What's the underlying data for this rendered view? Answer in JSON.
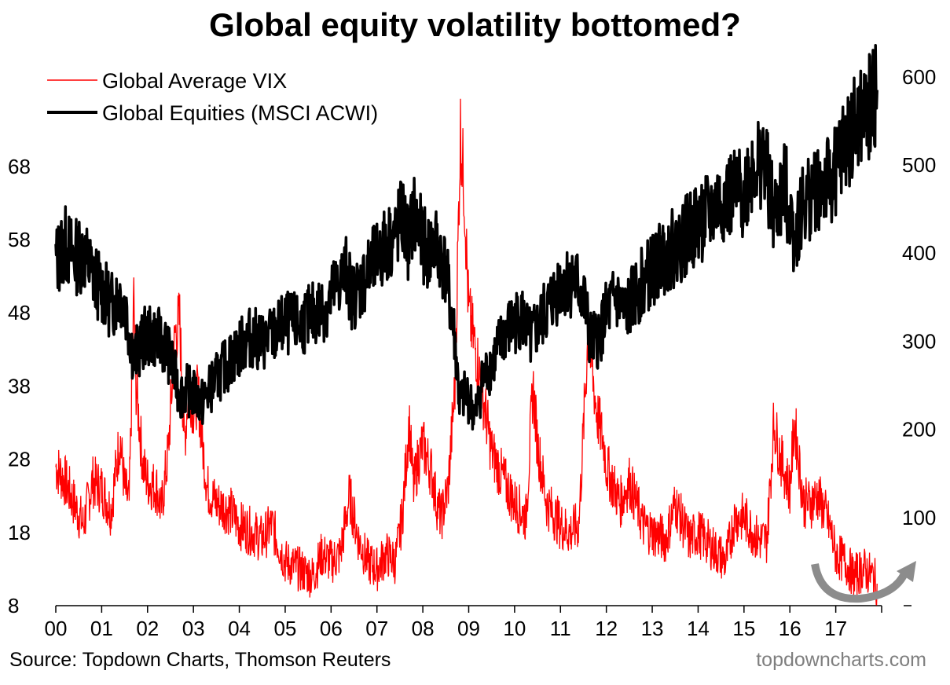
{
  "chart_data": {
    "type": "line",
    "title": "Global equity volatility bottomed?",
    "x": [
      "00",
      "01",
      "02",
      "03",
      "04",
      "05",
      "06",
      "07",
      "08",
      "09",
      "10",
      "11",
      "12",
      "13",
      "14",
      "15",
      "16",
      "17"
    ],
    "left_axis": {
      "ticks": [
        "68",
        "58",
        "48",
        "38",
        "28",
        "18",
        "8"
      ],
      "ylim": [
        8,
        76
      ]
    },
    "right_axis": {
      "ticks": [
        "600",
        "500",
        "400",
        "300",
        "200",
        "100"
      ],
      "ylim": [
        0,
        620
      ]
    },
    "legend": "top-left",
    "series": [
      {
        "name": "Global Average VIX",
        "axis": "left",
        "color": "#ff0000",
        "points": [
          [
            2000.0,
            27
          ],
          [
            2000.2,
            25
          ],
          [
            2000.4,
            22
          ],
          [
            2000.6,
            19
          ],
          [
            2000.8,
            25
          ],
          [
            2001.0,
            24
          ],
          [
            2001.2,
            21
          ],
          [
            2001.4,
            31
          ],
          [
            2001.5,
            24
          ],
          [
            2001.6,
            22
          ],
          [
            2001.7,
            50
          ],
          [
            2001.75,
            38
          ],
          [
            2001.9,
            27
          ],
          [
            2002.0,
            25
          ],
          [
            2002.2,
            24
          ],
          [
            2002.3,
            21
          ],
          [
            2002.45,
            29
          ],
          [
            2002.6,
            45
          ],
          [
            2002.7,
            47
          ],
          [
            2002.8,
            30
          ],
          [
            2002.9,
            38
          ],
          [
            2003.0,
            35
          ],
          [
            2003.1,
            37
          ],
          [
            2003.2,
            30
          ],
          [
            2003.3,
            24
          ],
          [
            2003.5,
            22
          ],
          [
            2003.8,
            21
          ],
          [
            2004.0,
            19
          ],
          [
            2004.3,
            18
          ],
          [
            2004.5,
            17
          ],
          [
            2004.7,
            19
          ],
          [
            2005.0,
            14
          ],
          [
            2005.3,
            13
          ],
          [
            2005.6,
            12
          ],
          [
            2005.8,
            15
          ],
          [
            2006.0,
            14
          ],
          [
            2006.2,
            15
          ],
          [
            2006.4,
            23
          ],
          [
            2006.6,
            17
          ],
          [
            2006.8,
            14
          ],
          [
            2007.0,
            13
          ],
          [
            2007.2,
            15
          ],
          [
            2007.4,
            14
          ],
          [
            2007.55,
            20
          ],
          [
            2007.7,
            33
          ],
          [
            2007.8,
            24
          ],
          [
            2007.9,
            28
          ],
          [
            2008.0,
            30
          ],
          [
            2008.2,
            26
          ],
          [
            2008.3,
            22
          ],
          [
            2008.4,
            20
          ],
          [
            2008.55,
            24
          ],
          [
            2008.7,
            38
          ],
          [
            2008.82,
            73
          ],
          [
            2008.9,
            65
          ],
          [
            2009.0,
            48
          ],
          [
            2009.15,
            43
          ],
          [
            2009.3,
            37
          ],
          [
            2009.5,
            29
          ],
          [
            2009.7,
            26
          ],
          [
            2010.0,
            22
          ],
          [
            2010.25,
            20
          ],
          [
            2010.4,
            38
          ],
          [
            2010.5,
            30
          ],
          [
            2010.7,
            22
          ],
          [
            2010.9,
            20
          ],
          [
            2011.0,
            19
          ],
          [
            2011.2,
            18
          ],
          [
            2011.4,
            19
          ],
          [
            2011.6,
            45
          ],
          [
            2011.8,
            34
          ],
          [
            2011.95,
            30
          ],
          [
            2012.0,
            27
          ],
          [
            2012.3,
            22
          ],
          [
            2012.5,
            25
          ],
          [
            2012.8,
            19
          ],
          [
            2013.0,
            18
          ],
          [
            2013.3,
            17
          ],
          [
            2013.5,
            22
          ],
          [
            2013.8,
            17
          ],
          [
            2014.0,
            18
          ],
          [
            2014.3,
            16
          ],
          [
            2014.6,
            14
          ],
          [
            2014.8,
            20
          ],
          [
            2015.0,
            20
          ],
          [
            2015.3,
            17
          ],
          [
            2015.5,
            17
          ],
          [
            2015.65,
            33
          ],
          [
            2015.8,
            28
          ],
          [
            2016.0,
            24
          ],
          [
            2016.1,
            33
          ],
          [
            2016.3,
            22
          ],
          [
            2016.45,
            22
          ],
          [
            2016.6,
            23
          ],
          [
            2016.75,
            21
          ],
          [
            2016.9,
            18
          ],
          [
            2017.0,
            15
          ],
          [
            2017.2,
            14
          ],
          [
            2017.4,
            12
          ],
          [
            2017.6,
            13
          ],
          [
            2017.8,
            12
          ],
          [
            2017.9,
            11
          ]
        ]
      },
      {
        "name": "Global Equities (MSCI ACWI)",
        "axis": "right",
        "color": "#000000",
        "points": [
          [
            2000.0,
            390
          ],
          [
            2000.2,
            410
          ],
          [
            2000.4,
            395
          ],
          [
            2000.6,
            400
          ],
          [
            2000.85,
            370
          ],
          [
            2001.0,
            360
          ],
          [
            2001.2,
            340
          ],
          [
            2001.4,
            355
          ],
          [
            2001.55,
            330
          ],
          [
            2001.7,
            280
          ],
          [
            2001.8,
            290
          ],
          [
            2001.95,
            305
          ],
          [
            2002.2,
            305
          ],
          [
            2002.4,
            295
          ],
          [
            2002.55,
            270
          ],
          [
            2002.7,
            240
          ],
          [
            2002.85,
            245
          ],
          [
            2003.0,
            240
          ],
          [
            2003.2,
            230
          ],
          [
            2003.35,
            245
          ],
          [
            2003.6,
            265
          ],
          [
            2003.9,
            285
          ],
          [
            2004.2,
            305
          ],
          [
            2004.5,
            300
          ],
          [
            2004.7,
            305
          ],
          [
            2005.0,
            320
          ],
          [
            2005.3,
            318
          ],
          [
            2005.6,
            330
          ],
          [
            2005.9,
            340
          ],
          [
            2006.2,
            370
          ],
          [
            2006.35,
            380
          ],
          [
            2006.45,
            350
          ],
          [
            2006.6,
            360
          ],
          [
            2006.9,
            385
          ],
          [
            2007.2,
            410
          ],
          [
            2007.4,
            420
          ],
          [
            2007.55,
            440
          ],
          [
            2007.7,
            410
          ],
          [
            2007.8,
            445
          ],
          [
            2007.95,
            420
          ],
          [
            2008.1,
            400
          ],
          [
            2008.3,
            410
          ],
          [
            2008.5,
            380
          ],
          [
            2008.7,
            300
          ],
          [
            2008.8,
            230
          ],
          [
            2008.95,
            240
          ],
          [
            2009.15,
            215
          ],
          [
            2009.3,
            255
          ],
          [
            2009.5,
            275
          ],
          [
            2009.8,
            310
          ],
          [
            2010.0,
            320
          ],
          [
            2010.15,
            330
          ],
          [
            2010.35,
            300
          ],
          [
            2010.55,
            320
          ],
          [
            2010.8,
            345
          ],
          [
            2011.0,
            365
          ],
          [
            2011.3,
            370
          ],
          [
            2011.5,
            350
          ],
          [
            2011.65,
            300
          ],
          [
            2011.8,
            300
          ],
          [
            2012.0,
            330
          ],
          [
            2012.2,
            350
          ],
          [
            2012.4,
            330
          ],
          [
            2012.7,
            360
          ],
          [
            2013.0,
            380
          ],
          [
            2013.3,
            400
          ],
          [
            2013.6,
            410
          ],
          [
            2013.9,
            430
          ],
          [
            2014.2,
            440
          ],
          [
            2014.5,
            460
          ],
          [
            2014.8,
            465
          ],
          [
            2015.0,
            470
          ],
          [
            2015.2,
            500
          ],
          [
            2015.45,
            505
          ],
          [
            2015.65,
            440
          ],
          [
            2015.9,
            475
          ],
          [
            2016.1,
            420
          ],
          [
            2016.3,
            455
          ],
          [
            2016.6,
            475
          ],
          [
            2016.9,
            480
          ],
          [
            2017.1,
            510
          ],
          [
            2017.4,
            540
          ],
          [
            2017.7,
            560
          ],
          [
            2017.9,
            585
          ]
        ]
      }
    ],
    "annotation": "curved-arrow-bottom-right"
  },
  "source": "Source: Topdown Charts, Thomson Reuters",
  "brand": "topdowncharts.com"
}
